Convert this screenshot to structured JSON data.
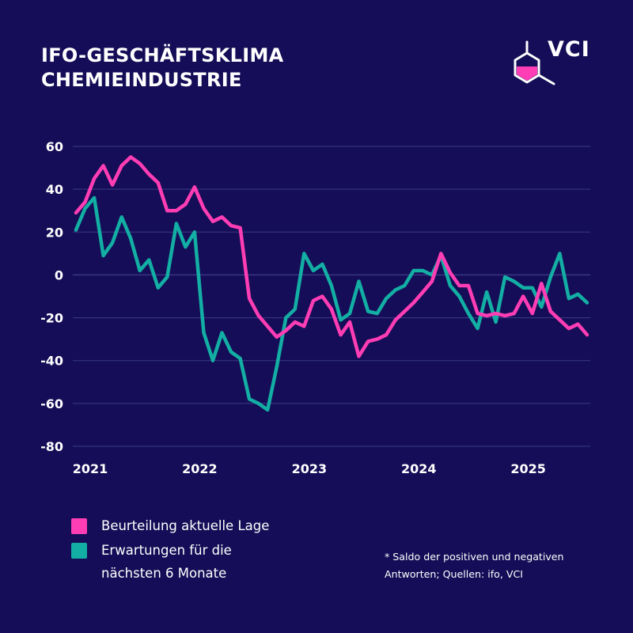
{
  "title": {
    "line1": "IFO-GESCHÄFTSKLIMA",
    "line2": "CHEMIEINDUSTRIE"
  },
  "logo": {
    "text": "VCI",
    "icon": "hexagon-molecule-icon",
    "accent": "#ff3db4"
  },
  "legend": [
    {
      "label": "Beurteilung aktuelle Lage",
      "color": "#ff3db4"
    },
    {
      "label": "Erwartungen für die nächsten 6 Monate",
      "color": "#13aea4"
    }
  ],
  "footnote": "* Saldo der positiven und negativen Antworten; Quellen: ifo, VCI",
  "colors": {
    "background": "#150d57",
    "grid": "#3c3a86",
    "text": "#ffffff"
  },
  "chart_data": {
    "type": "line",
    "ylim": [
      -80,
      60
    ],
    "yticks": [
      60,
      40,
      20,
      0,
      -20,
      -40,
      -60,
      -80
    ],
    "xlim": [
      2021.0,
      2025.667
    ],
    "xticks": [
      2021,
      2022,
      2023,
      2024,
      2025
    ],
    "xtick_labels": [
      "2021",
      "2022",
      "2023",
      "2024",
      "2025"
    ],
    "grid": true,
    "zero_line": true,
    "x": [
      2021.0,
      2021.083,
      2021.167,
      2021.25,
      2021.333,
      2021.417,
      2021.5,
      2021.583,
      2021.667,
      2021.75,
      2021.833,
      2021.917,
      2022.0,
      2022.083,
      2022.167,
      2022.25,
      2022.333,
      2022.417,
      2022.5,
      2022.583,
      2022.667,
      2022.75,
      2022.833,
      2022.917,
      2023.0,
      2023.083,
      2023.167,
      2023.25,
      2023.333,
      2023.417,
      2023.5,
      2023.583,
      2023.667,
      2023.75,
      2023.833,
      2023.917,
      2024.0,
      2024.083,
      2024.167,
      2024.25,
      2024.333,
      2024.417,
      2024.5,
      2024.583,
      2024.667,
      2024.75,
      2024.833,
      2024.917,
      2025.0,
      2025.083,
      2025.167,
      2025.25,
      2025.333,
      2025.417,
      2025.5,
      2025.583,
      2025.667
    ],
    "series": [
      {
        "name": "Beurteilung aktuelle Lage",
        "color": "#ff3db4",
        "values": [
          29,
          34,
          45,
          51,
          42,
          51,
          55,
          52,
          47,
          43,
          30,
          30,
          33,
          41,
          31,
          25,
          27,
          23,
          22,
          -11,
          -19,
          -24,
          -29,
          -26,
          -22,
          -24,
          -12,
          -10,
          -16,
          -28,
          -22,
          -38,
          -31,
          -30,
          -28,
          -21,
          -17,
          -13,
          -8,
          -3,
          10,
          1,
          -5,
          -5,
          -18,
          -19,
          -18,
          -19,
          -18,
          -10,
          -18,
          -4,
          -17,
          -21,
          -25,
          -23,
          -28
        ]
      },
      {
        "name": "Erwartungen für die nächsten 6 Monate",
        "color": "#13aea4",
        "values": [
          21,
          31,
          36,
          9,
          15,
          27,
          17,
          2,
          7,
          -6,
          -1,
          24,
          13,
          20,
          -27,
          -40,
          -27,
          -36,
          -39,
          -58,
          -60,
          -63,
          -43,
          -20,
          -16,
          10,
          2,
          5,
          -5,
          -21,
          -18,
          -3,
          -17,
          -18,
          -11,
          -7,
          -5,
          2,
          2,
          0,
          9,
          -5,
          -10,
          -18,
          -25,
          -8,
          -22,
          -1,
          -3,
          -6,
          -6,
          -15,
          -1,
          10,
          -11,
          -9,
          -13
        ]
      }
    ]
  }
}
